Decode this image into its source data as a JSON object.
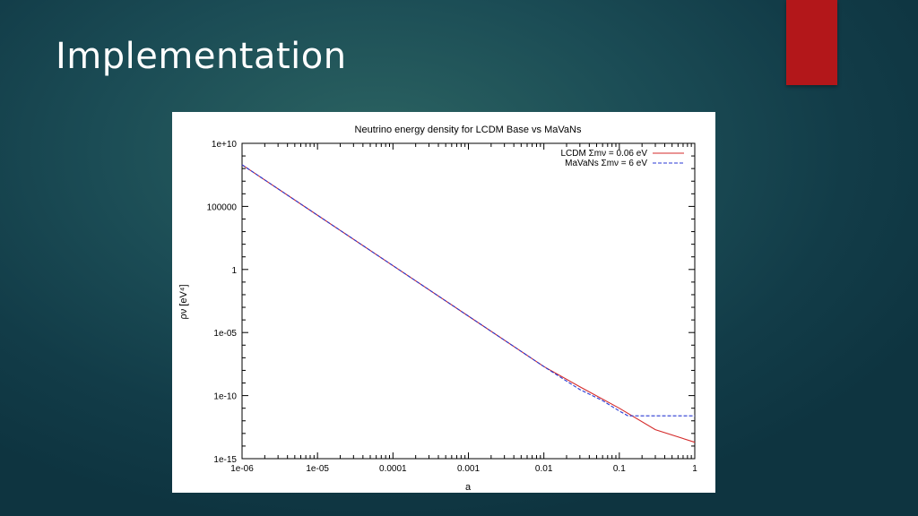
{
  "slide": {
    "title": "Implementation",
    "colors": {
      "accent": "#b3171a",
      "title_text": "#ffffff",
      "background": "#1b4c55"
    }
  },
  "chart_data": {
    "type": "line",
    "title": "Neutrino energy density for LCDM Base vs MaVaNs",
    "xlabel": "a",
    "ylabel": "ρν [eV⁴]",
    "xscale": "log",
    "yscale": "log",
    "xlim": [
      1e-06,
      1
    ],
    "ylim": [
      1e-15,
      10000000000.0
    ],
    "x_ticks": [
      "1e-06",
      "1e-05",
      "0.0001",
      "0.001",
      "0.01",
      "0.1",
      "1"
    ],
    "y_ticks": [
      "1e+10",
      "100000",
      "1",
      "1e-05",
      "1e-10",
      "1e-15"
    ],
    "grid": false,
    "legend_position": "top-right",
    "series": [
      {
        "name": "LCDM Σmν = 0.06 eV",
        "color": "#d42a2a",
        "line_style": "solid",
        "x": [
          1e-06,
          1e-05,
          0.0001,
          0.001,
          0.01,
          0.03,
          0.1,
          0.3,
          1
        ],
        "y": [
          200000000.0,
          20000.0,
          2,
          0.0002,
          2e-08,
          5e-10,
          1e-11,
          2e-13,
          2e-14
        ]
      },
      {
        "name": "MaVaNs Σmν = 6 eV",
        "color": "#2a3ad4",
        "line_style": "dashed",
        "x": [
          1e-06,
          1e-05,
          0.0001,
          0.001,
          0.01,
          0.03,
          0.06,
          0.1,
          0.13,
          0.2,
          0.5,
          1
        ],
        "y": [
          200000000.0,
          20000.0,
          2,
          0.0002,
          2e-08,
          3e-10,
          4e-11,
          6e-12,
          2.5e-12,
          2.5e-12,
          2.5e-12,
          2.5e-12
        ]
      }
    ]
  }
}
